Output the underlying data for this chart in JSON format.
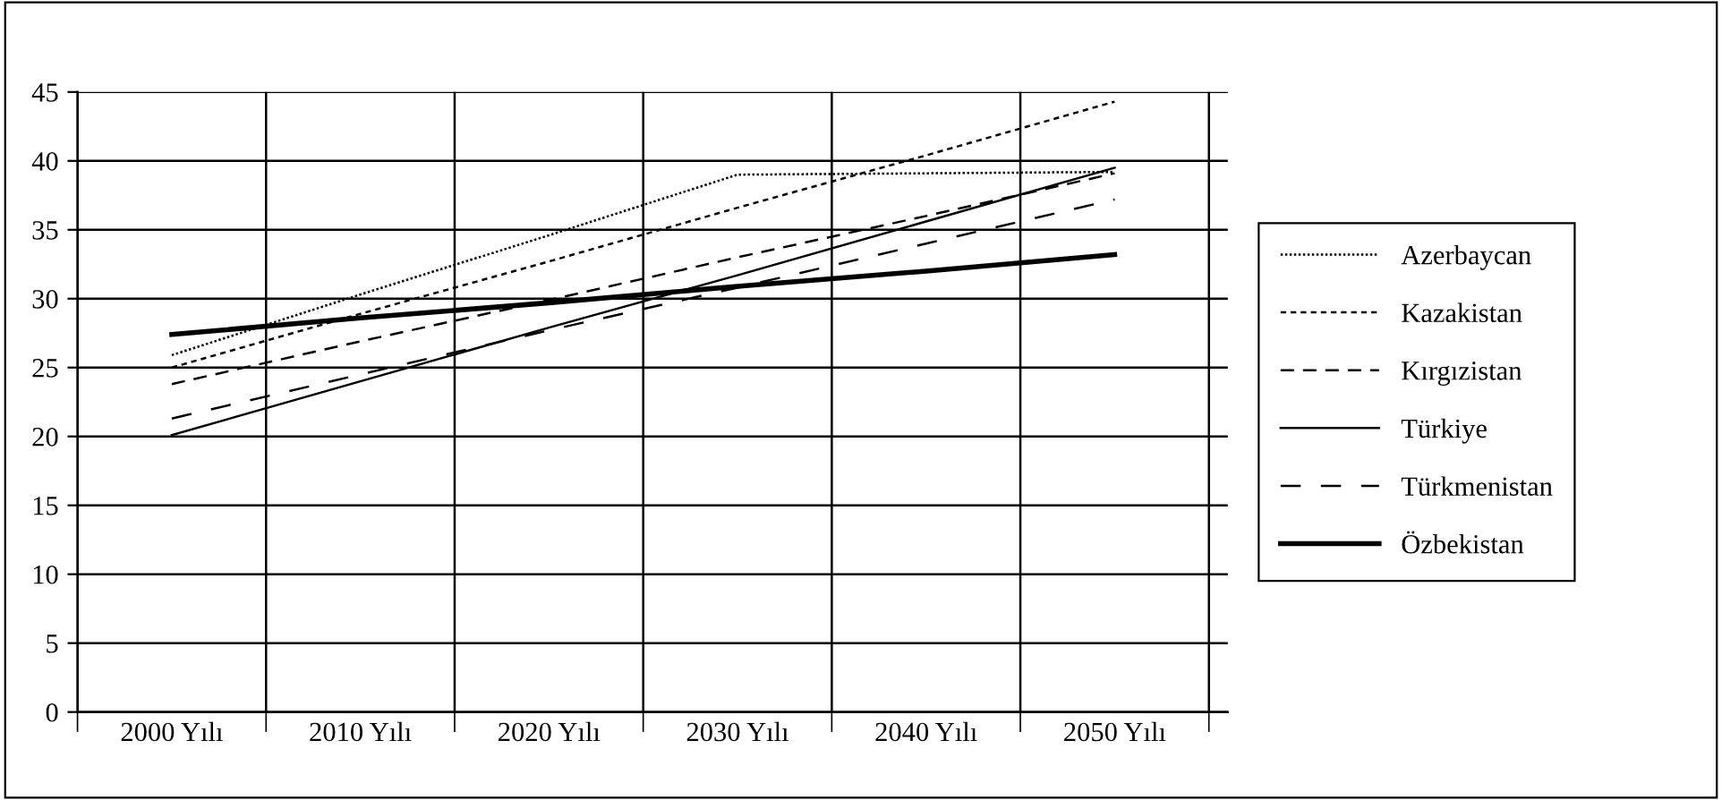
{
  "chart_data": {
    "type": "line",
    "categories": [
      "2000 Yılı",
      "2010 Yılı",
      "2020 Yılı",
      "2030 Yılı",
      "2040 Yılı",
      "2050 Yılı"
    ],
    "series": [
      {
        "name": "Azerbaycan",
        "color": "#000000",
        "line_style": "dotted",
        "values": [
          25.9,
          30.3,
          34.6,
          39.0,
          39.1,
          39.2
        ]
      },
      {
        "name": "Kazakistan",
        "color": "#000000",
        "line_style": "dashed",
        "values": [
          25.0,
          28.9,
          32.7,
          36.6,
          40.4,
          44.3
        ]
      },
      {
        "name": "Kırgızistan",
        "color": "#000000",
        "line_style": "dashed",
        "values": [
          23.8,
          26.9,
          29.9,
          33.0,
          36.0,
          39.1
        ]
      },
      {
        "name": "Türkiye",
        "color": "#000000",
        "line_style": "solid",
        "values": [
          20.1,
          24.0,
          27.9,
          31.7,
          35.6,
          39.5
        ]
      },
      {
        "name": "Türkmenistan",
        "color": "#000000",
        "line_style": "dashed",
        "values": [
          21.3,
          24.5,
          27.7,
          30.8,
          34.0,
          37.2
        ]
      },
      {
        "name": "Özbekistan",
        "color": "#000000",
        "line_style": "solid",
        "values": [
          27.4,
          28.6,
          29.7,
          30.9,
          32.0,
          33.2
        ]
      }
    ],
    "ylim": [
      0,
      45
    ],
    "yticks": [
      0,
      5,
      10,
      15,
      20,
      25,
      30,
      35,
      40,
      45
    ],
    "grid": true,
    "legend": "right",
    "marker": "none"
  }
}
